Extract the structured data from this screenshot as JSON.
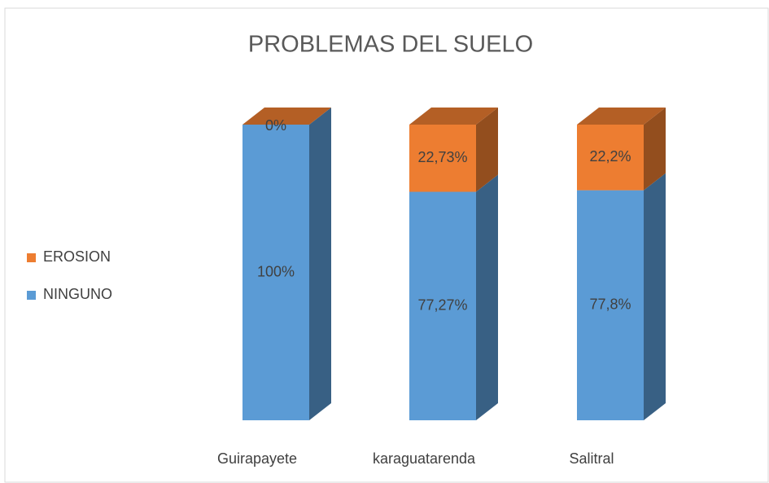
{
  "chart_data": {
    "type": "bar3d_stacked",
    "title": "PROBLEMAS DEL SUELO",
    "categories": [
      "Guirapayete",
      "karaguatarenda",
      "Salitral"
    ],
    "series": [
      {
        "name": "NINGUNO",
        "color": "#5b9bd5",
        "values": [
          100,
          77.27,
          77.8
        ],
        "value_labels": [
          "100%",
          "77,27%",
          "77,8%"
        ]
      },
      {
        "name": "EROSION",
        "color": "#ed7d31",
        "values": [
          0,
          22.73,
          22.2
        ],
        "value_labels": [
          "0%",
          "22,73%",
          "22,2%"
        ]
      }
    ],
    "legend": "left"
  }
}
